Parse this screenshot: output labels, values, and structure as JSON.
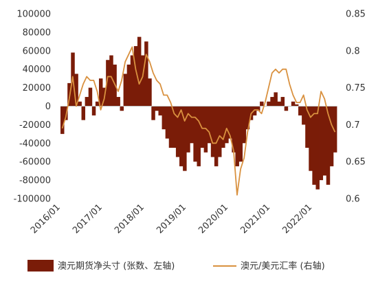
{
  "chart_data": {
    "type": "bar+line",
    "title": "",
    "colors": {
      "bar": "#7a1c08",
      "line": "#d9913f"
    },
    "x_ticks": [
      "2016/01",
      "2017/01",
      "2018/01",
      "2019/01",
      "2020/01",
      "2021/01",
      "2022/01"
    ],
    "y_left": {
      "lim": [
        -100000,
        100000
      ],
      "ticks": [
        "100000",
        "80000",
        "60000",
        "40000",
        "20000",
        "0",
        "-20000",
        "-40000",
        "-60000",
        "-80000",
        "-100000"
      ]
    },
    "y_right": {
      "lim": [
        0.6,
        0.85
      ],
      "ticks": [
        "0.85",
        "0.8",
        "0.75",
        "0.7",
        "0.65",
        "0.6"
      ]
    },
    "x": [
      "2016-01",
      "2016-02",
      "2016-03",
      "2016-04",
      "2016-05",
      "2016-06",
      "2016-07",
      "2016-08",
      "2016-09",
      "2016-10",
      "2016-11",
      "2016-12",
      "2017-01",
      "2017-02",
      "2017-03",
      "2017-04",
      "2017-05",
      "2017-06",
      "2017-07",
      "2017-08",
      "2017-09",
      "2017-10",
      "2017-11",
      "2017-12",
      "2018-01",
      "2018-02",
      "2018-03",
      "2018-04",
      "2018-05",
      "2018-06",
      "2018-07",
      "2018-08",
      "2018-09",
      "2018-10",
      "2018-11",
      "2018-12",
      "2019-01",
      "2019-02",
      "2019-03",
      "2019-04",
      "2019-05",
      "2019-06",
      "2019-07",
      "2019-08",
      "2019-09",
      "2019-10",
      "2019-11",
      "2019-12",
      "2020-01",
      "2020-02",
      "2020-03",
      "2020-04",
      "2020-05",
      "2020-06",
      "2020-07",
      "2020-08",
      "2020-09",
      "2020-10",
      "2020-11",
      "2020-12",
      "2021-01",
      "2021-02",
      "2021-03",
      "2021-04",
      "2021-05",
      "2021-06",
      "2021-07",
      "2021-08",
      "2021-09",
      "2021-10",
      "2021-11",
      "2021-12",
      "2022-01",
      "2022-02",
      "2022-03",
      "2022-04",
      "2022-05",
      "2022-06",
      "2022-07"
    ],
    "series": [
      {
        "name": "澳元期货净头寸 (张数、左轴)",
        "type": "bar",
        "axis": "left",
        "values": [
          -30000,
          -15000,
          25000,
          58000,
          35000,
          5000,
          -15000,
          10000,
          20000,
          -10000,
          5000,
          30000,
          20000,
          50000,
          55000,
          45000,
          10000,
          -5000,
          35000,
          45000,
          55000,
          65000,
          75000,
          55000,
          70000,
          30000,
          -15000,
          -5000,
          -10000,
          -25000,
          -35000,
          -45000,
          -45000,
          -55000,
          -65000,
          -70000,
          -50000,
          -40000,
          -60000,
          -65000,
          -45000,
          -50000,
          -40000,
          -55000,
          -65000,
          -55000,
          -45000,
          -40000,
          -35000,
          -50000,
          -65000,
          -60000,
          -40000,
          -25000,
          -15000,
          -10000,
          -5000,
          5000,
          0,
          5000,
          10000,
          15000,
          5000,
          10000,
          -5000,
          0,
          5000,
          2000,
          -10000,
          -20000,
          -45000,
          -70000,
          -85000,
          -90000,
          -80000,
          -75000,
          -85000,
          -65000,
          -50000
        ]
      },
      {
        "name": "澳元/美元汇率 (右轴)",
        "type": "line",
        "axis": "right",
        "values": [
          0.695,
          0.71,
          0.735,
          0.765,
          0.725,
          0.74,
          0.755,
          0.765,
          0.76,
          0.76,
          0.745,
          0.72,
          0.735,
          0.765,
          0.765,
          0.755,
          0.745,
          0.76,
          0.785,
          0.795,
          0.805,
          0.775,
          0.755,
          0.765,
          0.795,
          0.785,
          0.77,
          0.76,
          0.755,
          0.74,
          0.74,
          0.73,
          0.715,
          0.71,
          0.72,
          0.705,
          0.715,
          0.71,
          0.71,
          0.705,
          0.695,
          0.695,
          0.69,
          0.675,
          0.675,
          0.685,
          0.68,
          0.695,
          0.685,
          0.665,
          0.605,
          0.64,
          0.655,
          0.69,
          0.715,
          0.72,
          0.72,
          0.715,
          0.73,
          0.75,
          0.77,
          0.775,
          0.77,
          0.775,
          0.775,
          0.755,
          0.74,
          0.73,
          0.73,
          0.74,
          0.72,
          0.71,
          0.715,
          0.715,
          0.745,
          0.735,
          0.715,
          0.7,
          0.69
        ]
      }
    ],
    "legend": {
      "position": "bottom"
    }
  }
}
